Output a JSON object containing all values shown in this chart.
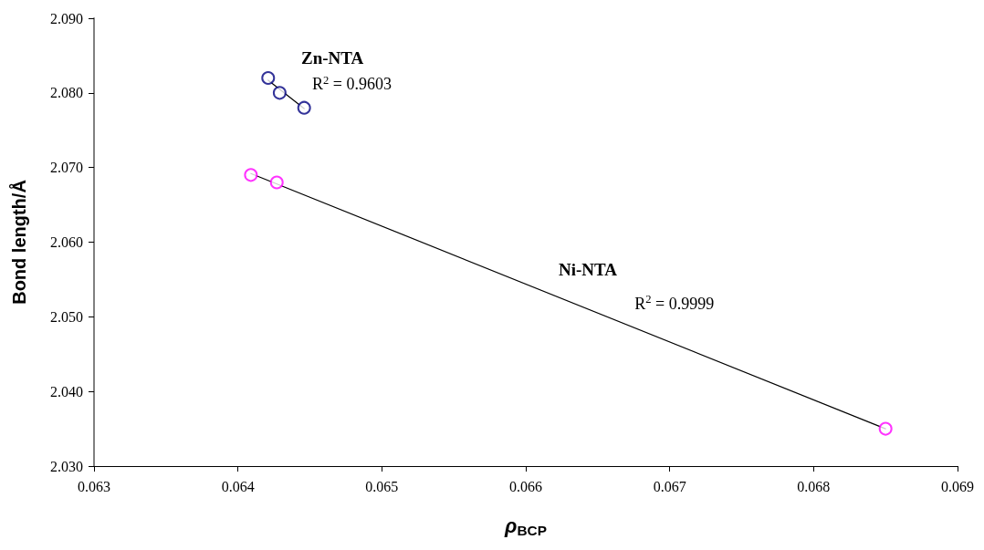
{
  "chart_data": {
    "type": "scatter",
    "xlabel": "ρ$_{BCP}$",
    "ylabel": "Bond length/Å",
    "xlim": [
      0.063,
      0.069
    ],
    "xticks": [
      0.063,
      0.064,
      0.065,
      0.066,
      0.067,
      0.068,
      0.069
    ],
    "ylim": [
      2.03,
      2.09
    ],
    "yticks": [
      {
        "value": 2.03,
        "label": "2.030"
      },
      {
        "value": 2.04,
        "label": "2.040"
      },
      {
        "value": 2.05,
        "label": "2.050"
      },
      {
        "value": 2.06,
        "label": "2.060"
      },
      {
        "value": 2.07,
        "label": "2.070"
      },
      {
        "value": 2.08,
        "label": "2.080"
      },
      {
        "value": 2.09,
        "label": "2.090"
      }
    ],
    "grid": false,
    "marker": "circle",
    "series": [
      {
        "type": "scatter",
        "color": "#000080",
        "x": [
          0.06421,
          0.06429,
          0.06446
        ],
        "values": [
          2.082,
          2.08,
          2.078
        ]
      },
      {
        "type": "scatter",
        "color": "#ff00ff",
        "x": [
          0.06409,
          0.06427,
          0.0685
        ],
        "values": [
          2.069,
          2.068,
          2.035
        ]
      },
      {
        "type": "line",
        "color": "#000000",
        "marker": "none",
        "line_style": "solid",
        "x": [
          0.06421,
          0.06446
        ],
        "values": [
          2.0817,
          2.0779
        ]
      },
      {
        "type": "line",
        "color": "#000000",
        "marker": "none",
        "line_style": "solid",
        "x": [
          0.06409,
          0.0685
        ],
        "values": [
          2.0692,
          2.035
        ]
      }
    ],
    "annotations": [
      "Zn-NTA",
      "R$^{2}$ = 0.9603",
      "Ni-NTA",
      "R$^{2}$ = 0.9999"
    ]
  }
}
